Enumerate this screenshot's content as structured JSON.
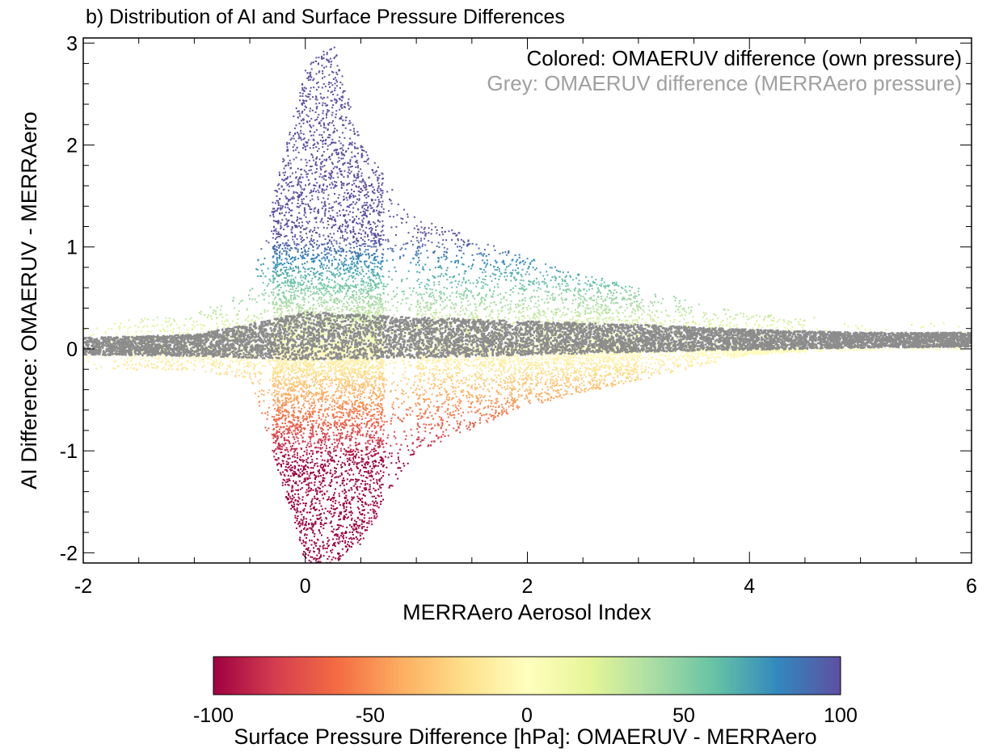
{
  "chart_data": {
    "type": "scatter",
    "title": "b) Distribution of AI and Surface Pressure Differences",
    "xlabel": "MERRAero Aerosol Index",
    "ylabel": "AI Difference: OMAERUV - MERRAero",
    "xlim": [
      -2,
      6
    ],
    "ylim": [
      -2.1,
      3.05
    ],
    "x_ticks": [
      -2,
      0,
      2,
      4,
      6
    ],
    "y_ticks": [
      -2,
      -1,
      0,
      1,
      2,
      3
    ],
    "grid": false,
    "legend": {
      "placement": "top-right",
      "entries": [
        {
          "text": "Colored: OMAERUV difference (own pressure)",
          "color": "#000000"
        },
        {
          "text": "Grey: OMAERUV difference (MERRAero pressure)",
          "color": "#a0a0a0"
        }
      ]
    },
    "series": [
      {
        "label": "Colored: OMAERUV difference (own pressure)",
        "color_by": "surface pressure difference",
        "summary": [
          {
            "x": -2.0,
            "y_upper": 0.25,
            "y_lower": -0.2
          },
          {
            "x": -1.0,
            "y_upper": 0.35,
            "y_lower": -0.2
          },
          {
            "x": -0.5,
            "y_upper": 0.6,
            "y_lower": -0.3
          },
          {
            "x": 0.0,
            "y_upper": 2.8,
            "y_lower": -2.1
          },
          {
            "x": 0.25,
            "y_upper": 3.0,
            "y_lower": -2.1
          },
          {
            "x": 0.5,
            "y_upper": 2.0,
            "y_lower": -1.9
          },
          {
            "x": 1.0,
            "y_upper": 1.3,
            "y_lower": -1.0
          },
          {
            "x": 2.0,
            "y_upper": 0.9,
            "y_lower": -0.55
          },
          {
            "x": 3.0,
            "y_upper": 0.6,
            "y_lower": -0.3
          },
          {
            "x": 4.0,
            "y_upper": 0.35,
            "y_lower": -0.05
          },
          {
            "x": 5.0,
            "y_upper": 0.3,
            "y_lower": 0.0
          },
          {
            "x": 6.0,
            "y_upper": 0.25,
            "y_lower": 0.05
          }
        ]
      },
      {
        "label": "Grey: OMAERUV difference (MERRAero pressure)",
        "color": "#8c8c8c",
        "summary": [
          {
            "x": -2.0,
            "y_upper": 0.12,
            "y_lower": -0.05
          },
          {
            "x": -1.0,
            "y_upper": 0.15,
            "y_lower": -0.06
          },
          {
            "x": 0.0,
            "y_upper": 0.37,
            "y_lower": -0.1
          },
          {
            "x": 1.0,
            "y_upper": 0.32,
            "y_lower": -0.08
          },
          {
            "x": 2.0,
            "y_upper": 0.28,
            "y_lower": -0.05
          },
          {
            "x": 3.0,
            "y_upper": 0.25,
            "y_lower": -0.02
          },
          {
            "x": 4.0,
            "y_upper": 0.2,
            "y_lower": 0.0
          },
          {
            "x": 5.0,
            "y_upper": 0.17,
            "y_lower": 0.02
          },
          {
            "x": 6.0,
            "y_upper": 0.17,
            "y_lower": 0.03
          }
        ]
      }
    ],
    "colorbar": {
      "label": "Surface Pressure Difference [hPa]: OMAERUV - MERRAero",
      "range": [
        -100,
        100
      ],
      "ticks": [
        -100,
        -50,
        0,
        50,
        100
      ],
      "colors": [
        "#9e0142",
        "#d53e4f",
        "#f46d43",
        "#fdae61",
        "#fee08b",
        "#ffffbf",
        "#e6f598",
        "#abdda4",
        "#66c2a5",
        "#3288bd",
        "#5e4fa2"
      ]
    }
  }
}
